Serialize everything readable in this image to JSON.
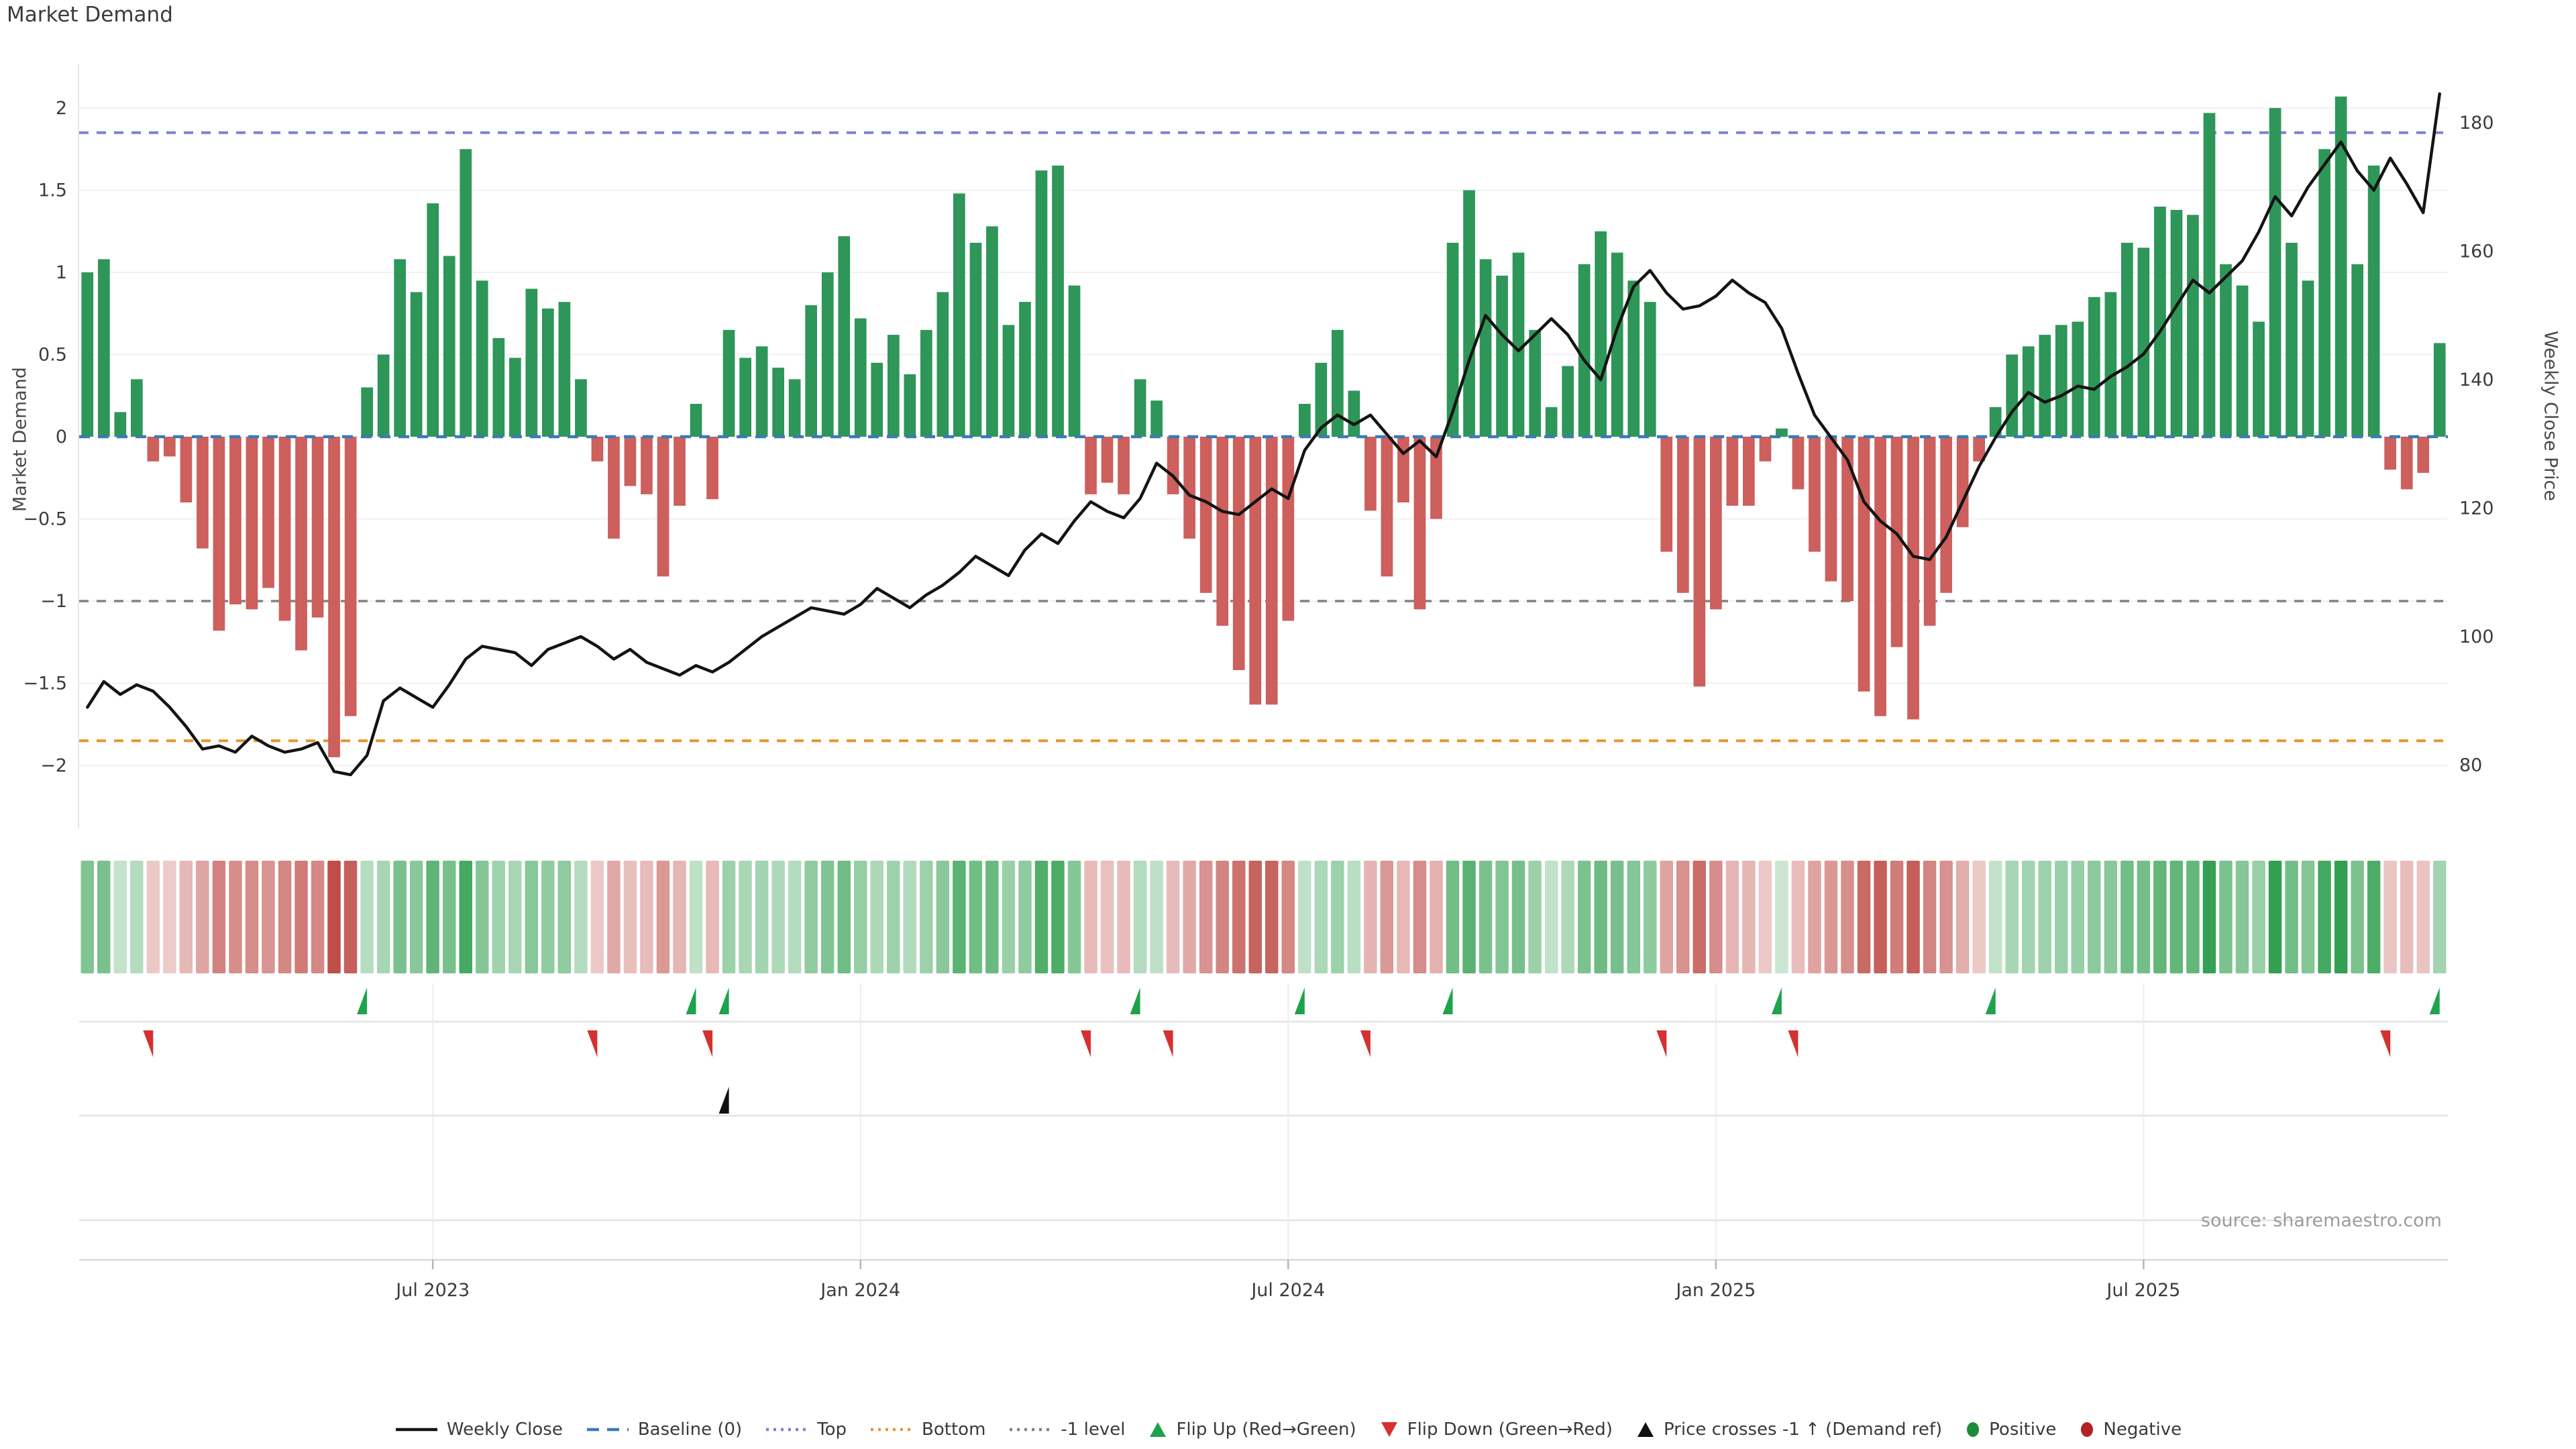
{
  "title": "Market Demand",
  "source": "source: sharemaestro.com",
  "axes": {
    "left_label": "Market Demand",
    "right_label": "Weekly Close Price",
    "left_ticks": [
      {
        "label": "2",
        "value": 2
      },
      {
        "label": "1.5",
        "value": 1.5
      },
      {
        "label": "1",
        "value": 1
      },
      {
        "label": "0.5",
        "value": 0.5
      },
      {
        "label": "0",
        "value": 0
      },
      {
        "label": "−0.5",
        "value": -0.5
      },
      {
        "label": "−1",
        "value": -1
      },
      {
        "label": "−1.5",
        "value": -1.5
      },
      {
        "label": "−2",
        "value": -2
      }
    ],
    "right_ticks": [
      {
        "label": "180",
        "value": 180
      },
      {
        "label": "160",
        "value": 160
      },
      {
        "label": "140",
        "value": 140
      },
      {
        "label": "120",
        "value": 120
      },
      {
        "label": "100",
        "value": 100
      },
      {
        "label": "80",
        "value": 80
      }
    ],
    "x_ticks": [
      {
        "label": "Jul 2023",
        "week": 21
      },
      {
        "label": "Jan 2024",
        "week": 47
      },
      {
        "label": "Jul 2024",
        "week": 73
      },
      {
        "label": "Jan 2025",
        "week": 99
      },
      {
        "label": "Jul 2025",
        "week": 125
      }
    ]
  },
  "colors": {
    "bar_positive": "#2e9658",
    "bar_negative": "#cd5f5c",
    "price_line": "#141414",
    "baseline": "#3a7ab8",
    "top_level": "#7b80d8",
    "bottom_level": "#e8952c",
    "minus_one_level": "#828282",
    "flip_up": "#1ea24c",
    "flip_down": "#d63030",
    "price_cross": "#111111",
    "positive_dot": "#1e8b3a",
    "negative_dot": "#b22222",
    "grid": "#f1f1f4",
    "panel_line": "#e3e3e3",
    "axis_line": "#d9d9d9",
    "tick_text": "#3c3c3c"
  },
  "chart_data": {
    "type": "bar",
    "subtype": "weekly demand bars + price line overlay + heatmap strip + event marker rows",
    "title": "Market Demand",
    "xlabel": "",
    "ylabel_left": "Market Demand",
    "ylabel_right": "Weekly Close Price",
    "ylim_left": [
      -2.36,
      2.29
    ],
    "ylim_right": [
      70.5,
      189.5
    ],
    "grid": "horizontal-faint",
    "legend_position": "bottom-center",
    "n_weeks": 144,
    "levels": {
      "baseline": 0,
      "top": 1.85,
      "bottom": -1.85,
      "minus_one": -1
    },
    "demand_bars": [
      1.0,
      1.08,
      0.15,
      0.35,
      -0.15,
      -0.12,
      -0.4,
      -0.68,
      -1.18,
      -1.02,
      -1.05,
      -0.92,
      -1.12,
      -1.3,
      -1.1,
      -1.95,
      -1.7,
      0.3,
      0.5,
      1.08,
      0.88,
      1.42,
      1.1,
      1.75,
      0.95,
      0.6,
      0.48,
      0.9,
      0.78,
      0.82,
      0.35,
      -0.15,
      -0.62,
      -0.3,
      -0.35,
      -0.85,
      -0.42,
      0.2,
      -0.38,
      0.65,
      0.48,
      0.55,
      0.42,
      0.35,
      0.8,
      1.0,
      1.22,
      0.72,
      0.45,
      0.62,
      0.38,
      0.65,
      0.88,
      1.48,
      1.18,
      1.28,
      0.68,
      0.82,
      1.62,
      1.65,
      0.92,
      -0.35,
      -0.28,
      -0.35,
      0.35,
      0.22,
      -0.35,
      -0.62,
      -0.95,
      -1.15,
      -1.42,
      -1.63,
      -1.63,
      -1.12,
      0.2,
      0.45,
      0.65,
      0.28,
      -0.45,
      -0.85,
      -0.4,
      -1.05,
      -0.5,
      1.18,
      1.5,
      1.08,
      0.98,
      1.12,
      0.65,
      0.18,
      0.43,
      1.05,
      1.25,
      1.12,
      0.95,
      0.82,
      -0.7,
      -0.95,
      -1.52,
      -1.05,
      -0.42,
      -0.42,
      -0.15,
      0.05,
      -0.32,
      -0.7,
      -0.88,
      -1.0,
      -1.55,
      -1.7,
      -1.28,
      -1.72,
      -1.15,
      -0.95,
      -0.55,
      -0.15,
      0.18,
      0.5,
      0.55,
      0.62,
      0.68,
      0.7,
      0.85,
      0.88,
      1.18,
      1.15,
      1.4,
      1.38,
      1.35,
      1.97,
      1.05,
      0.92,
      0.7,
      2.0,
      1.18,
      0.95,
      1.75,
      2.07,
      1.05,
      1.65,
      -0.2,
      -0.32,
      -0.22,
      0.57
    ],
    "weekly_close": [
      89,
      93,
      91,
      92.5,
      91.5,
      89,
      86,
      82.5,
      83,
      82,
      84.5,
      83,
      82,
      82.5,
      83.5,
      79,
      78.5,
      81.5,
      90,
      92,
      90.5,
      89,
      92.5,
      96.5,
      98.5,
      98,
      97.5,
      95.5,
      98,
      99,
      100,
      98.5,
      96.5,
      98,
      96,
      95,
      94,
      95.5,
      94.5,
      96,
      98,
      100,
      101.5,
      103,
      104.5,
      104,
      103.5,
      105,
      107.5,
      106,
      104.5,
      106.5,
      108,
      110,
      112.5,
      111,
      109.5,
      113.5,
      116,
      114.5,
      118,
      121,
      119.5,
      118.5,
      121.5,
      127,
      125,
      122,
      121,
      119.5,
      119,
      121,
      123,
      121.5,
      129,
      132.5,
      134.5,
      133,
      134.5,
      131.5,
      128.5,
      130.5,
      128,
      135,
      143,
      150,
      147,
      144.5,
      147,
      149.5,
      147,
      143,
      140,
      148,
      154.5,
      157,
      153.5,
      151,
      151.5,
      153,
      155.5,
      153.5,
      152,
      148,
      141,
      134.5,
      131,
      127.5,
      121,
      118,
      116,
      112.5,
      112,
      115.5,
      121,
      126.5,
      131,
      135,
      138,
      136.5,
      137.5,
      139,
      138.5,
      140.5,
      142,
      144,
      147.5,
      151.5,
      155.5,
      153.5,
      156,
      158.5,
      163,
      168.5,
      165.5,
      170,
      173.5,
      177,
      172.5,
      169.5,
      174.5,
      170.5,
      166,
      184.5
    ],
    "heatmap_from": "demand_bars",
    "markers": {
      "flip_up_weeks": [
        17,
        37,
        39,
        64,
        74,
        83,
        103,
        116,
        143
      ],
      "flip_down_weeks": [
        4,
        31,
        38,
        61,
        66,
        78,
        96,
        104,
        140
      ],
      "price_cross_minus1_weeks": [
        39
      ]
    }
  },
  "legend": [
    {
      "label": "Weekly Close",
      "glyph": "solid-line",
      "color": "#141414"
    },
    {
      "label": "Baseline (0)",
      "glyph": "dashed-line",
      "color": "#3a7ab8"
    },
    {
      "label": "Top",
      "glyph": "dotted-line",
      "color": "#7b80d8"
    },
    {
      "label": "Bottom",
      "glyph": "dotted-line",
      "color": "#e8952c"
    },
    {
      "label": "-1 level",
      "glyph": "dotted-line",
      "color": "#828282"
    },
    {
      "label": "Flip Up (Red→Green)",
      "glyph": "triangle-up",
      "color": "#1ea24c"
    },
    {
      "label": "Flip Down (Green→Red)",
      "glyph": "triangle-down",
      "color": "#d63030"
    },
    {
      "label": "Price crosses -1 ↑ (Demand ref)",
      "glyph": "triangle-up",
      "color": "#111111"
    },
    {
      "label": "Positive",
      "glyph": "circle",
      "color": "#1e8b3a"
    },
    {
      "label": "Negative",
      "glyph": "circle",
      "color": "#b22222"
    }
  ]
}
